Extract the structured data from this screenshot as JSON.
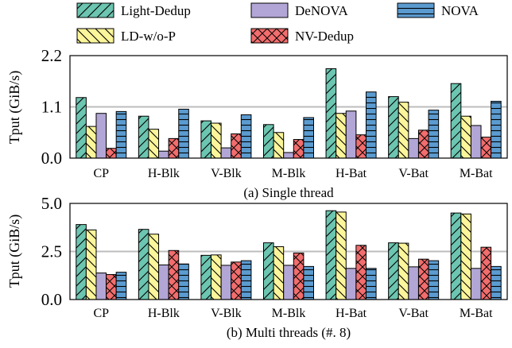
{
  "legend": [
    {
      "name": "Light-Dedup",
      "color": "#6cc5b0",
      "hatch": "diag-fwd"
    },
    {
      "name": "DeNOVA",
      "color": "#b2a6d6",
      "hatch": "none"
    },
    {
      "name": "NOVA",
      "color": "#5b9bd0",
      "hatch": "horiz"
    },
    {
      "name": "LD-w/o-P",
      "color": "#fbf59b",
      "hatch": "diag-back"
    },
    {
      "name": "NV-Dedup",
      "color": "#f26d6d",
      "hatch": "cross"
    }
  ],
  "chart_data": [
    {
      "type": "bar",
      "caption": "(a) Single thread",
      "ylabel": "Tput (GiB/s)",
      "ylim": [
        0,
        2.2
      ],
      "yticks": [
        "0.0",
        "1.1",
        "2.2"
      ],
      "grid": "horizontal",
      "categories": [
        "CP",
        "H-Blk",
        "V-Blk",
        "M-Blk",
        "H-Bat",
        "V-Bat",
        "M-Bat"
      ],
      "series": [
        {
          "name": "Light-Dedup",
          "values": [
            1.3,
            0.9,
            0.8,
            0.72,
            1.92,
            1.32,
            1.6
          ]
        },
        {
          "name": "LD-w/o-P",
          "values": [
            0.68,
            0.62,
            0.75,
            0.55,
            0.96,
            1.2,
            0.9
          ]
        },
        {
          "name": "DeNOVA",
          "values": [
            0.96,
            0.15,
            0.22,
            0.12,
            1.01,
            0.42,
            0.7
          ]
        },
        {
          "name": "NV-Dedup",
          "values": [
            0.21,
            0.42,
            0.52,
            0.4,
            0.5,
            0.6,
            0.45
          ]
        },
        {
          "name": "NOVA",
          "values": [
            1.0,
            1.05,
            0.93,
            0.87,
            1.42,
            1.03,
            1.22
          ]
        }
      ]
    },
    {
      "type": "bar",
      "caption": "(b) Multi threads (#. 8)",
      "ylabel": "Tput (GiB/s)",
      "ylim": [
        0,
        5.0
      ],
      "yticks": [
        "0.0",
        "2.5",
        "5.0"
      ],
      "grid": "horizontal",
      "categories": [
        "CP",
        "H-Blk",
        "V-Blk",
        "M-Blk",
        "H-Bat",
        "V-Bat",
        "M-Bat"
      ],
      "series": [
        {
          "name": "Light-Dedup",
          "values": [
            3.9,
            3.65,
            2.3,
            2.95,
            4.62,
            2.95,
            4.5
          ]
        },
        {
          "name": "LD-w/o-P",
          "values": [
            3.62,
            3.4,
            2.32,
            2.75,
            4.55,
            2.93,
            4.45
          ]
        },
        {
          "name": "DeNOVA",
          "values": [
            1.38,
            1.8,
            1.78,
            1.78,
            1.62,
            1.7,
            1.62
          ]
        },
        {
          "name": "NV-Dedup",
          "values": [
            1.3,
            2.55,
            1.95,
            2.42,
            2.82,
            2.1,
            2.72
          ]
        },
        {
          "name": "NOVA",
          "values": [
            1.42,
            1.85,
            2.02,
            1.72,
            1.62,
            2.02,
            1.72
          ]
        }
      ]
    }
  ]
}
